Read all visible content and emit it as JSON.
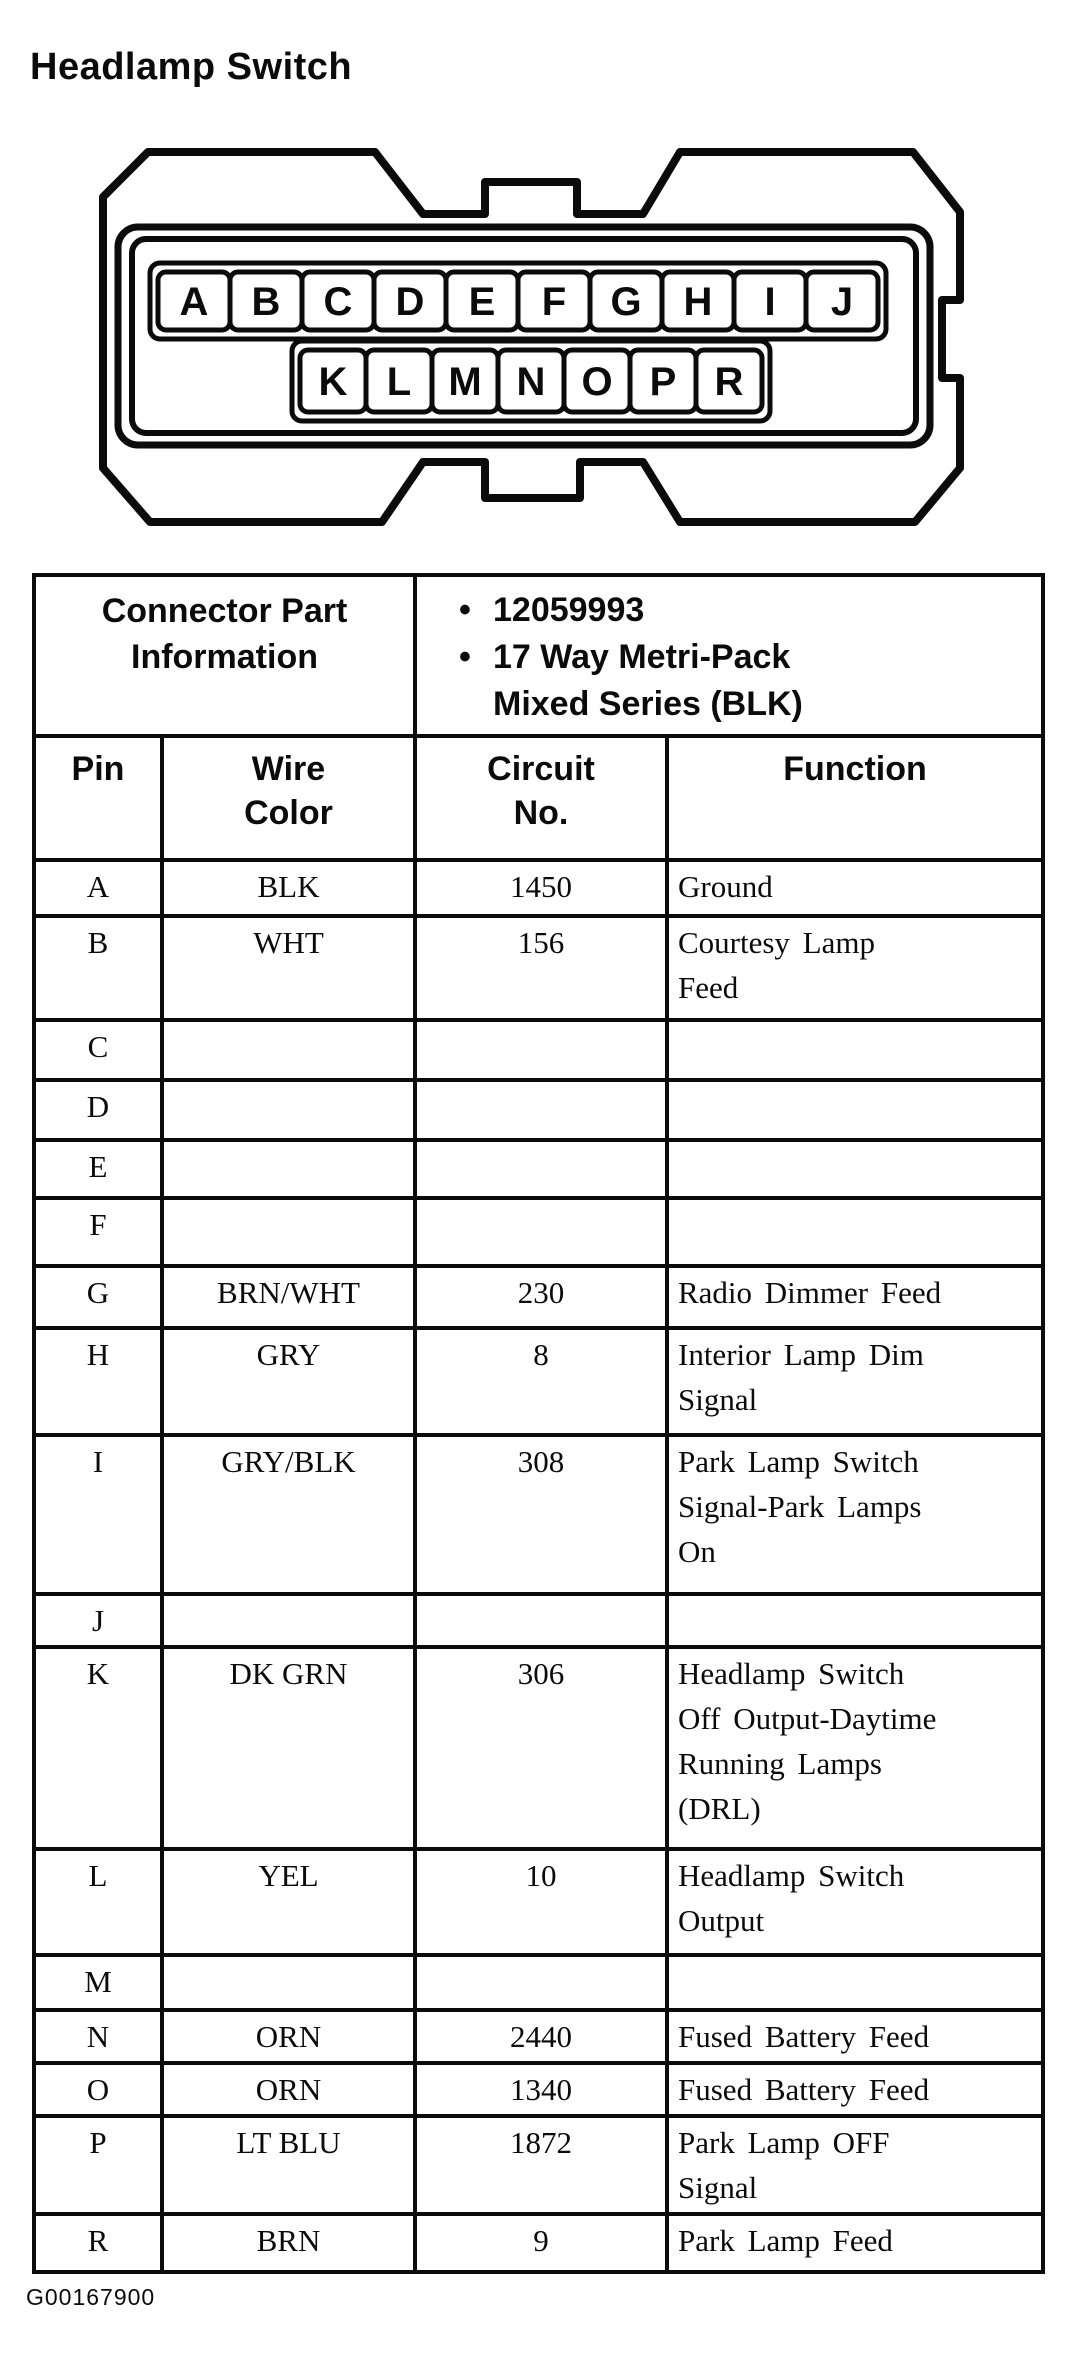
{
  "title": "Headlamp Switch",
  "figure_code": "G00167900",
  "connector": {
    "top_row_pins": [
      "A",
      "B",
      "C",
      "D",
      "E",
      "F",
      "G",
      "H",
      "I",
      "J"
    ],
    "bottom_row_pins": [
      "K",
      "L",
      "M",
      "N",
      "O",
      "P",
      "R"
    ]
  },
  "part_info": {
    "label": "Connector Part\nInformation",
    "bullets": [
      "12059993",
      "17 Way Metri-Pack\nMixed Series (BLK)"
    ]
  },
  "table": {
    "headers": [
      "Pin",
      "Wire\nColor",
      "Circuit\nNo.",
      "Function"
    ],
    "rows": [
      {
        "pin": "A",
        "wire_color": "BLK",
        "circuit_no": "1450",
        "function": "Ground"
      },
      {
        "pin": "B",
        "wire_color": "WHT",
        "circuit_no": "156",
        "function": "Courtesy Lamp\nFeed"
      },
      {
        "pin": "C",
        "wire_color": "",
        "circuit_no": "",
        "function": ""
      },
      {
        "pin": "D",
        "wire_color": "",
        "circuit_no": "",
        "function": ""
      },
      {
        "pin": "E",
        "wire_color": "",
        "circuit_no": "",
        "function": ""
      },
      {
        "pin": "F",
        "wire_color": "",
        "circuit_no": "",
        "function": ""
      },
      {
        "pin": "G",
        "wire_color": "BRN/WHT",
        "circuit_no": "230",
        "function": "Radio Dimmer Feed"
      },
      {
        "pin": "H",
        "wire_color": "GRY",
        "circuit_no": "8",
        "function": "Interior Lamp Dim\nSignal"
      },
      {
        "pin": "I",
        "wire_color": "GRY/BLK",
        "circuit_no": "308",
        "function": "Park Lamp Switch\nSignal-Park Lamps\nOn"
      },
      {
        "pin": "J",
        "wire_color": "",
        "circuit_no": "",
        "function": ""
      },
      {
        "pin": "K",
        "wire_color": "DK GRN",
        "circuit_no": "306",
        "function": "Headlamp Switch\nOff Output-Daytime\nRunning Lamps\n(DRL)"
      },
      {
        "pin": "L",
        "wire_color": "YEL",
        "circuit_no": "10",
        "function": "Headlamp Switch\nOutput"
      },
      {
        "pin": "M",
        "wire_color": "",
        "circuit_no": "",
        "function": ""
      },
      {
        "pin": "N",
        "wire_color": "ORN",
        "circuit_no": "2440",
        "function": "Fused Battery Feed"
      },
      {
        "pin": "O",
        "wire_color": "ORN",
        "circuit_no": "1340",
        "function": "Fused Battery Feed"
      },
      {
        "pin": "P",
        "wire_color": "LT BLU",
        "circuit_no": "1872",
        "function": "Park Lamp OFF\nSignal"
      },
      {
        "pin": "R",
        "wire_color": "BRN",
        "circuit_no": "9",
        "function": "Park Lamp Feed"
      }
    ]
  }
}
